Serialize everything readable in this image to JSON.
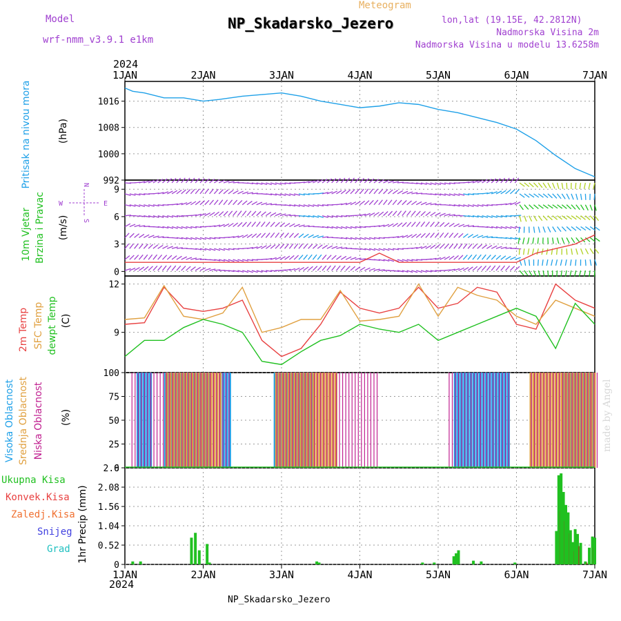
{
  "header": {
    "model_label": "Model",
    "model_version": "wrf-nmm_v3.9.1 e1km",
    "meteogram": "Meteogram",
    "station": "NP_Skadarsko_Jezero",
    "lonlat": "lon,lat (19.15E, 42.2812N)",
    "elevation_2m": "Nadmorska Visina 2m",
    "elevation_model": "Nadmorska Visina u modelu 13.6258m",
    "year": "2024"
  },
  "footer": {
    "station": "NP_Skadarsko_Jezero",
    "credit": "made by Angel"
  },
  "colors": {
    "pressure": "#1ea0e8",
    "temp2m": "#e84040",
    "sfc": "#e0a040",
    "dewpt": "#20c020",
    "high_cloud": "#1ea0e8",
    "mid_cloud": "#e0a040",
    "low_cloud": "#c02090",
    "total_precip": "#20c020",
    "conv_precip": "#e84040",
    "frozen_precip": "#f07030",
    "snow": "#4040e0",
    "hail": "#20c0c0",
    "wind_label": "#20c020",
    "wind_dir": "#a040d0"
  },
  "chart_data": [
    {
      "type": "line",
      "panel": "pressure",
      "ylabel_lines": [
        "Pritisak na nivou mora",
        "(hPa)"
      ],
      "ylim": [
        992,
        1022
      ],
      "yticks": [
        992,
        1000,
        1008,
        1016
      ],
      "xticks": [
        "1JAN",
        "2JAN",
        "3JAN",
        "4JAN",
        "5JAN",
        "6JAN",
        "7JAN"
      ],
      "x_days": [
        0,
        0.1,
        0.25,
        0.5,
        0.75,
        1.0,
        1.2,
        1.5,
        1.75,
        2.0,
        2.25,
        2.5,
        2.75,
        3.0,
        3.25,
        3.5,
        3.75,
        4.0,
        4.25,
        4.5,
        4.75,
        5.0,
        5.25,
        5.5,
        5.75,
        5.9,
        6.0
      ],
      "values": [
        1020,
        1019,
        1018.5,
        1017,
        1017,
        1016,
        1016.5,
        1017.5,
        1018,
        1018.5,
        1017.5,
        1016,
        1015,
        1014,
        1014.5,
        1015.5,
        1015,
        1013.5,
        1012.5,
        1011,
        1009.5,
        1007.5,
        1004,
        999.5,
        995.5,
        994,
        993
      ]
    },
    {
      "type": "scatter",
      "panel": "wind",
      "ylabel_lines": [
        "10m Vjetar",
        "Brzina i Pravac",
        "(m/s)"
      ],
      "direction_legend": [
        "N",
        "W",
        "E",
        "S"
      ],
      "ylim": [
        -0.5,
        10
      ],
      "yticks": [
        0,
        3,
        6,
        9
      ],
      "wind_speed_x_days": [
        0,
        0.5,
        1.0,
        1.5,
        2.0,
        2.5,
        3.0,
        3.25,
        3.5,
        4.0,
        4.5,
        5.0,
        5.25,
        5.5,
        5.75,
        6.0
      ],
      "wind_speed_values": [
        1,
        1,
        1,
        1,
        1,
        1,
        1,
        2,
        1,
        1,
        1,
        1,
        2,
        2.5,
        3,
        4
      ]
    },
    {
      "type": "line",
      "panel": "temperature",
      "ylabel_lines": [
        "2m Temp",
        "SFC Temp",
        "dewpt Temp",
        "(C)"
      ],
      "ylim": [
        6.5,
        12.5
      ],
      "yticks": [
        9,
        12
      ],
      "x_days": [
        0,
        0.25,
        0.5,
        0.75,
        1.0,
        1.25,
        1.5,
        1.75,
        2.0,
        2.25,
        2.5,
        2.75,
        3.0,
        3.25,
        3.5,
        3.75,
        4.0,
        4.25,
        4.5,
        4.75,
        5.0,
        5.25,
        5.5,
        5.75,
        6.0
      ],
      "series": [
        {
          "name": "2m Temp",
          "values": [
            9.5,
            9.6,
            11.8,
            10.5,
            10.3,
            10.5,
            11.0,
            8.5,
            7.5,
            8.0,
            9.5,
            11.5,
            10.5,
            10.2,
            10.5,
            11.8,
            10.5,
            10.8,
            11.8,
            11.5,
            9.5,
            9.2,
            12.0,
            11.0,
            10.5
          ]
        },
        {
          "name": "SFC Temp",
          "values": [
            9.8,
            9.9,
            11.9,
            10.0,
            9.8,
            10.2,
            11.8,
            9.0,
            9.3,
            9.8,
            9.8,
            11.6,
            9.7,
            9.8,
            10.0,
            12.0,
            10.0,
            11.8,
            11.3,
            11.0,
            10.0,
            9.5,
            11.0,
            10.5,
            10.0
          ]
        },
        {
          "name": "dewpt Temp",
          "values": [
            7.5,
            8.5,
            8.5,
            9.3,
            9.8,
            9.5,
            9.0,
            7.2,
            7.0,
            7.8,
            8.5,
            8.8,
            9.5,
            9.2,
            9.0,
            9.5,
            8.5,
            9.0,
            9.5,
            10.0,
            10.5,
            10.0,
            8.0,
            10.8,
            9.5
          ]
        }
      ]
    },
    {
      "type": "bar",
      "panel": "cloud",
      "ylabel_lines": [
        "Visoka Oblacnost",
        "Srednja Oblacnost",
        "Niska Oblacnost",
        "(%)"
      ],
      "ylim": [
        0,
        100
      ],
      "yticks": [
        0,
        25,
        50,
        75,
        100
      ],
      "series": [
        {
          "name": "Visoka Oblacnost",
          "spans_days": [
            [
              0.15,
              0.35
            ],
            [
              0.5,
              1.1
            ],
            [
              1.2,
              1.35
            ],
            [
              1.9,
              2.4
            ],
            [
              4.2,
              4.9
            ],
            [
              5.6,
              6.0
            ]
          ],
          "value": 100
        },
        {
          "name": "Srednja Oblacnost",
          "spans_days": [
            [
              0.5,
              1.2
            ],
            [
              1.9,
              2.7
            ],
            [
              5.15,
              5.6
            ],
            [
              5.6,
              6.0
            ]
          ],
          "value": 100
        },
        {
          "name": "Niska Oblacnost",
          "spans_days": [
            [
              0.05,
              1.3
            ],
            [
              1.9,
              3.2
            ],
            [
              4.1,
              4.9
            ],
            [
              5.15,
              6.0
            ]
          ],
          "value": 100
        }
      ]
    },
    {
      "type": "bar",
      "panel": "precip",
      "ylabel_lines": [
        "1hr Precip",
        "(mm)"
      ],
      "legend": [
        "Ukupna Kisa",
        "Konvek.Kisa",
        "Zaledj.Kisa",
        "Snijeg",
        "Grad"
      ],
      "ylim": [
        0,
        2.6
      ],
      "yticks": [
        0,
        0.52,
        1.04,
        1.56,
        2.08,
        2.6
      ],
      "ytick_labels": [
        "0",
        "0.52",
        "1.04",
        "1.56",
        "2.08",
        "2.6"
      ],
      "x_days": [
        0.1,
        0.2,
        0.85,
        0.9,
        0.95,
        1.05,
        1.08,
        2.45,
        2.48,
        3.8,
        3.95,
        4.2,
        4.23,
        4.26,
        4.45,
        4.55,
        4.98,
        5.51,
        5.54,
        5.57,
        5.6,
        5.63,
        5.66,
        5.69,
        5.72,
        5.75,
        5.78,
        5.82,
        5.88,
        5.93,
        5.97,
        6.0
      ],
      "values": [
        0.08,
        0.08,
        0.72,
        0.85,
        0.38,
        0.55,
        0.05,
        0.08,
        0.05,
        0.05,
        0.05,
        0.22,
        0.3,
        0.38,
        0.1,
        0.08,
        0.05,
        0.9,
        2.4,
        2.45,
        1.95,
        1.6,
        1.4,
        0.92,
        0.6,
        0.95,
        0.82,
        0.58,
        0.08,
        0.45,
        0.75,
        0.72
      ]
    }
  ]
}
